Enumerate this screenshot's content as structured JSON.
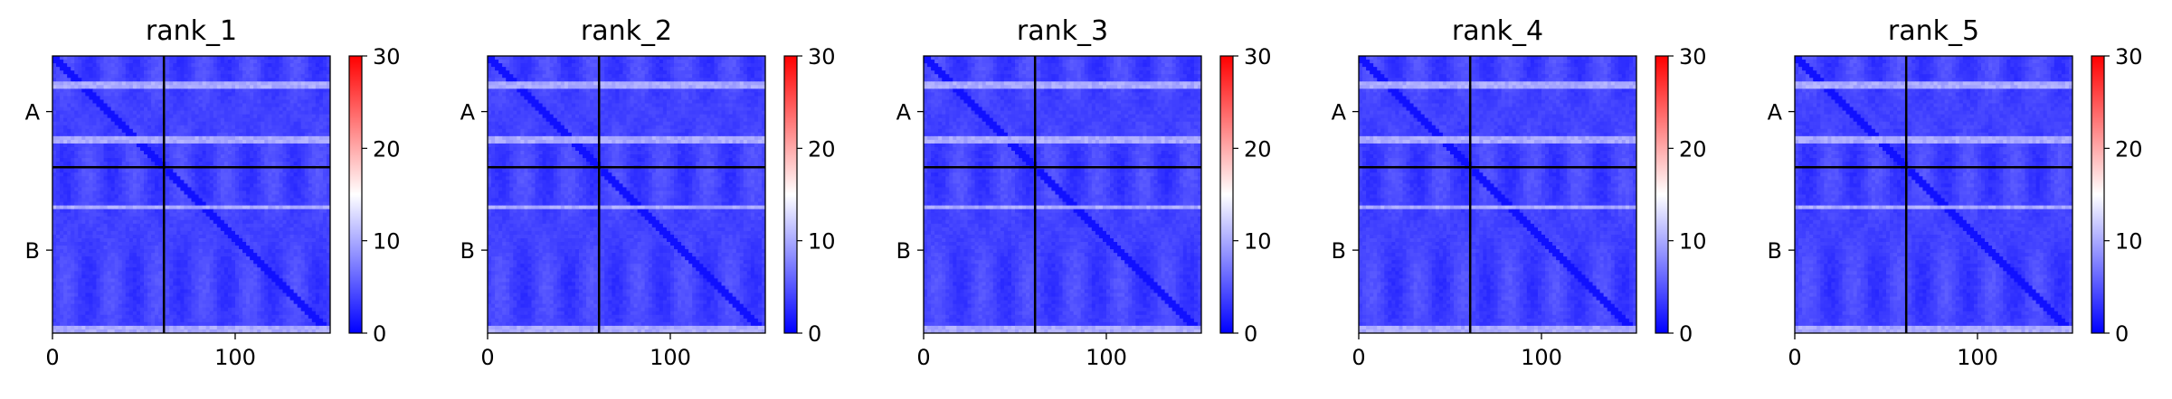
{
  "figure": {
    "panel_titles": [
      "rank_1",
      "rank_2",
      "rank_3",
      "rank_4",
      "rank_5"
    ]
  },
  "chart_data": [
    {
      "type": "heatmap",
      "title": "rank_1",
      "x_ticks": [
        0,
        100
      ],
      "y_tick_labels": [
        "A",
        "B"
      ],
      "chains": [
        {
          "name": "A",
          "length": 61
        },
        {
          "name": "B",
          "length": 91
        }
      ],
      "xlim": [
        0,
        152
      ],
      "colorbar": {
        "ticks": [
          0,
          10,
          20,
          30
        ],
        "range": [
          0,
          30
        ],
        "colormap": "bwr",
        "low_color": "#0000ff",
        "mid_color": "#ffffff",
        "high_color": "#ff0000"
      },
      "bright_rows": [
        15,
        45,
        82,
        149
      ],
      "background_value_range": [
        2,
        6
      ]
    },
    {
      "type": "heatmap",
      "title": "rank_2",
      "x_ticks": [
        0,
        100
      ],
      "y_tick_labels": [
        "A",
        "B"
      ],
      "chains": [
        {
          "name": "A",
          "length": 61
        },
        {
          "name": "B",
          "length": 91
        }
      ],
      "xlim": [
        0,
        152
      ],
      "colorbar": {
        "ticks": [
          0,
          10,
          20,
          30
        ],
        "range": [
          0,
          30
        ],
        "colormap": "bwr",
        "low_color": "#0000ff",
        "mid_color": "#ffffff",
        "high_color": "#ff0000"
      },
      "bright_rows": [
        15,
        45,
        82,
        149
      ],
      "background_value_range": [
        2,
        6
      ]
    },
    {
      "type": "heatmap",
      "title": "rank_3",
      "x_ticks": [
        0,
        100
      ],
      "y_tick_labels": [
        "A",
        "B"
      ],
      "chains": [
        {
          "name": "A",
          "length": 61
        },
        {
          "name": "B",
          "length": 91
        }
      ],
      "xlim": [
        0,
        152
      ],
      "colorbar": {
        "ticks": [
          0,
          10,
          20,
          30
        ],
        "range": [
          0,
          30
        ],
        "colormap": "bwr",
        "low_color": "#0000ff",
        "mid_color": "#ffffff",
        "high_color": "#ff0000"
      },
      "bright_rows": [
        15,
        45,
        82,
        149
      ],
      "background_value_range": [
        2,
        6
      ]
    },
    {
      "type": "heatmap",
      "title": "rank_4",
      "x_ticks": [
        0,
        100
      ],
      "y_tick_labels": [
        "A",
        "B"
      ],
      "chains": [
        {
          "name": "A",
          "length": 61
        },
        {
          "name": "B",
          "length": 91
        }
      ],
      "xlim": [
        0,
        152
      ],
      "colorbar": {
        "ticks": [
          0,
          10,
          20,
          30
        ],
        "range": [
          0,
          30
        ],
        "colormap": "bwr",
        "low_color": "#0000ff",
        "mid_color": "#ffffff",
        "high_color": "#ff0000"
      },
      "bright_rows": [
        15,
        45,
        82,
        149
      ],
      "background_value_range": [
        2,
        6
      ]
    },
    {
      "type": "heatmap",
      "title": "rank_5",
      "x_ticks": [
        0,
        100
      ],
      "y_tick_labels": [
        "A",
        "B"
      ],
      "chains": [
        {
          "name": "A",
          "length": 61
        },
        {
          "name": "B",
          "length": 91
        }
      ],
      "xlim": [
        0,
        152
      ],
      "colorbar": {
        "ticks": [
          0,
          10,
          20,
          30
        ],
        "range": [
          0,
          30
        ],
        "colormap": "bwr",
        "low_color": "#0000ff",
        "mid_color": "#ffffff",
        "high_color": "#ff0000"
      },
      "bright_rows": [
        15,
        45,
        82,
        149
      ],
      "background_value_range": [
        2,
        6
      ]
    }
  ]
}
